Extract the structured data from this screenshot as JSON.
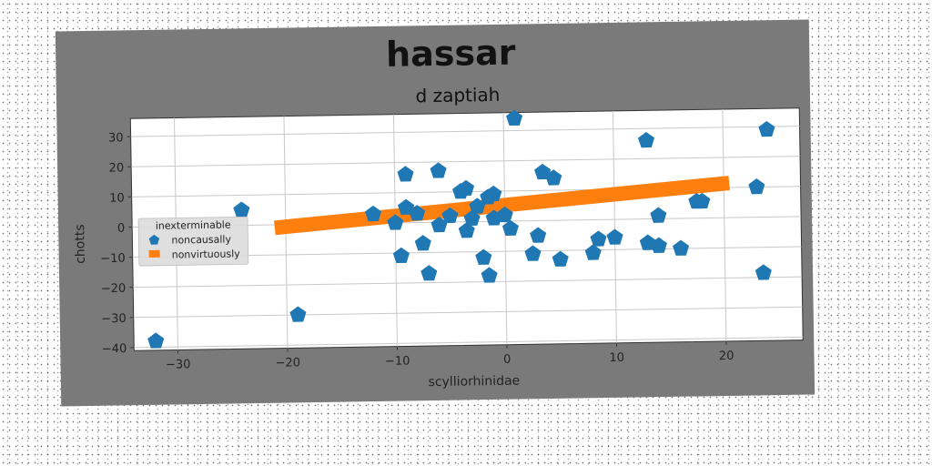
{
  "colors": {
    "panel": "#7a7a7a",
    "plot_bg": "#ffffff",
    "grid": "#c8c8c8",
    "series_points": "#1f77b4",
    "series_line": "#ff7f0e"
  },
  "chart_data": {
    "type": "scatter",
    "title": "hassar",
    "subtitle": "d zaptiah",
    "xlabel": "scylliorhinidae",
    "ylabel": "chotts",
    "xlim": [
      -34,
      27
    ],
    "ylim": [
      -41,
      36
    ],
    "xticks": [
      -30,
      -20,
      -10,
      0,
      10,
      20
    ],
    "yticks": [
      -40,
      -30,
      -20,
      -10,
      0,
      10,
      20,
      30
    ],
    "xtick_labels": [
      "−30",
      "−20",
      "−10",
      "0",
      "10",
      "20"
    ],
    "ytick_labels": [
      "−40",
      "−30",
      "−20",
      "−10",
      "0",
      "10",
      "20",
      "30"
    ],
    "grid": true,
    "legend": {
      "title": "inexterminable",
      "placement": "center-left",
      "entries": [
        "noncausally",
        "nonvirtuously"
      ]
    },
    "series": [
      {
        "name": "noncausally",
        "kind": "scatter",
        "marker": "pentagon",
        "points": [
          [
            -32,
            -38
          ],
          [
            -24,
            5
          ],
          [
            -19,
            -30
          ],
          [
            -12,
            3
          ],
          [
            -10,
            0
          ],
          [
            -9.5,
            -11
          ],
          [
            -9,
            5
          ],
          [
            -9,
            16
          ],
          [
            -8,
            3
          ],
          [
            -7.5,
            -7
          ],
          [
            -7,
            -17
          ],
          [
            -6,
            17
          ],
          [
            -6,
            -1
          ],
          [
            -5,
            2
          ],
          [
            -4,
            10
          ],
          [
            -3.5,
            11
          ],
          [
            -3.5,
            -3
          ],
          [
            -3,
            1
          ],
          [
            -2.5,
            5
          ],
          [
            -2,
            -12
          ],
          [
            -1.5,
            -18
          ],
          [
            -1.5,
            8
          ],
          [
            -1,
            9
          ],
          [
            -1,
            1
          ],
          [
            0,
            2
          ],
          [
            0.5,
            -2.5
          ],
          [
            1,
            34
          ],
          [
            2.5,
            -11
          ],
          [
            3,
            -5
          ],
          [
            3.5,
            16
          ],
          [
            4.5,
            14
          ],
          [
            5,
            -13
          ],
          [
            8,
            -11
          ],
          [
            8.5,
            -6.5
          ],
          [
            10,
            -6
          ],
          [
            13,
            26
          ],
          [
            13,
            -8
          ],
          [
            14,
            -9
          ],
          [
            14,
            1
          ],
          [
            16,
            -10
          ],
          [
            17.5,
            5.5
          ],
          [
            18,
            5.5
          ],
          [
            23,
            10
          ],
          [
            23.5,
            -18.5
          ],
          [
            24,
            29
          ]
        ]
      },
      {
        "name": "nonvirtuously",
        "kind": "line",
        "points": [
          [
            -21,
            -1
          ],
          [
            20.5,
            11.5
          ]
        ]
      }
    ]
  }
}
